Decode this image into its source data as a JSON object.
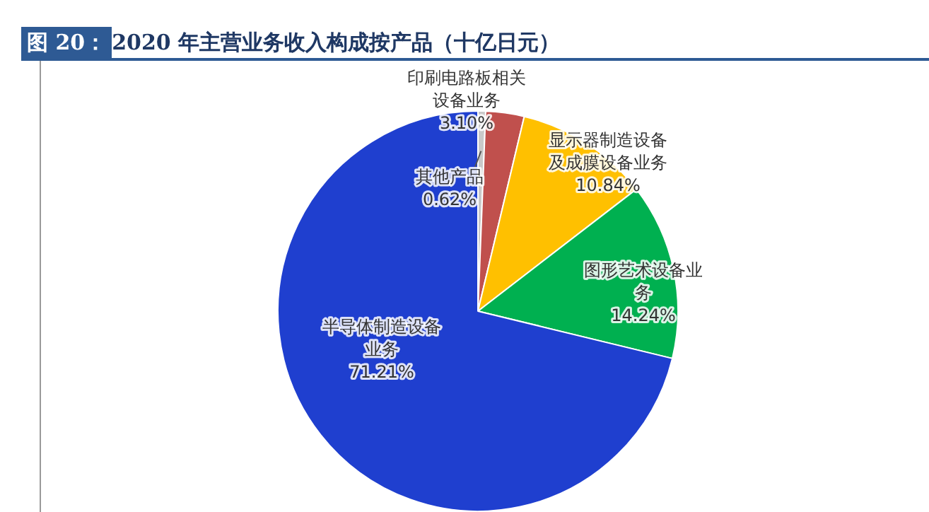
{
  "chart_data": {
    "type": "pie",
    "title": "图 20：2020 年主营业务收入构成按产品（十亿日元）",
    "categories": [
      "其他产品",
      "印刷电路板相关设备业务",
      "显示器制造设备及成膜设备业务",
      "图形艺术设备业务",
      "半导体制造设备业务"
    ],
    "values": [
      0.62,
      3.1,
      10.84,
      14.24,
      71.21
    ],
    "colors": [
      "#c9c9c9",
      "#c0504d",
      "#ffc000",
      "#00b050",
      "#1f3fcf"
    ],
    "value_labels": [
      "0.62%",
      "3.10%",
      "10.84%",
      "14.24%",
      "71.21%"
    ],
    "legend": false
  }
}
